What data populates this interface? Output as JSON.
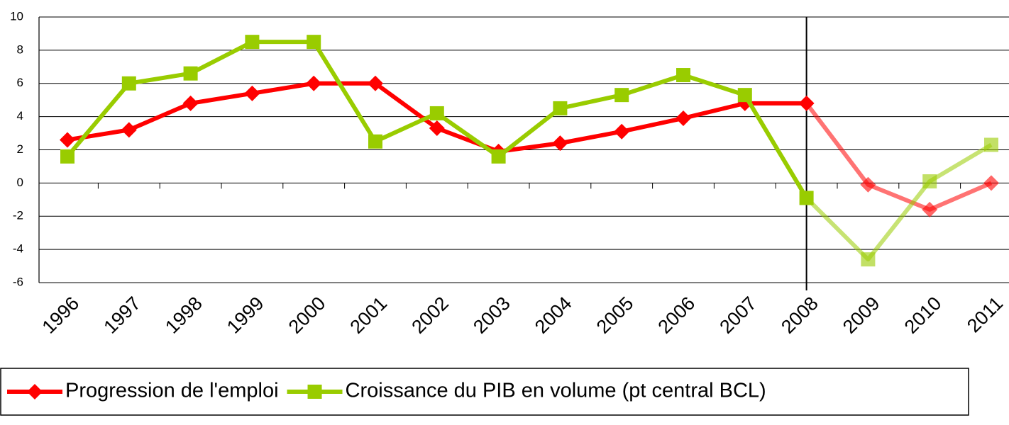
{
  "chart_data": {
    "type": "line",
    "categories": [
      "1996",
      "1997",
      "1998",
      "1999",
      "2000",
      "2001",
      "2002",
      "2003",
      "2004",
      "2005",
      "2006",
      "2007",
      "2008",
      "2009",
      "2010",
      "2011"
    ],
    "series": [
      {
        "name": "Progression de l'emploi",
        "color": "#ff0000",
        "marker": "diamond",
        "values": [
          2.6,
          3.2,
          4.8,
          5.4,
          6.0,
          6.0,
          3.3,
          1.9,
          2.4,
          3.1,
          3.9,
          4.8,
          4.8,
          -0.1,
          -1.6,
          0.0
        ]
      },
      {
        "name": "Croissance du PIB en volume (pt central BCL)",
        "color": "#99cc00",
        "marker": "square",
        "values": [
          1.6,
          6.0,
          6.6,
          8.5,
          8.5,
          2.5,
          4.2,
          1.6,
          4.5,
          5.3,
          6.5,
          5.3,
          -0.9,
          -4.6,
          0.1,
          2.3
        ]
      }
    ],
    "ylim": [
      -6,
      10
    ],
    "yticks": [
      -6,
      -4,
      -2,
      0,
      2,
      4,
      6,
      8,
      10
    ],
    "grid": true,
    "vertical_line_at": "2008",
    "legend": "bottom"
  }
}
